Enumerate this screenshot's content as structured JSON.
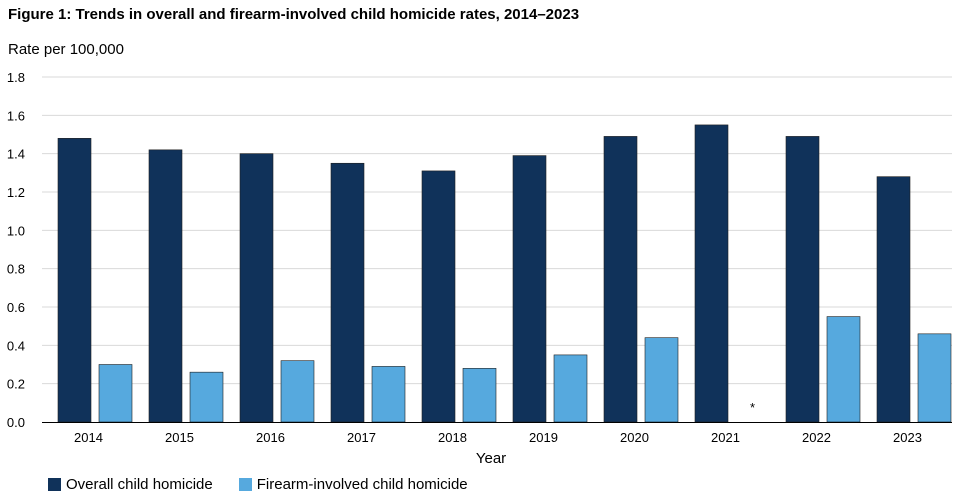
{
  "chart_data": {
    "type": "bar",
    "title": "Figure 1: Trends in overall and firearm-involved child homicide rates, 2014–2023",
    "ylabel": "Rate per 100,000",
    "xlabel": "Year",
    "categories": [
      "2014",
      "2015",
      "2016",
      "2017",
      "2018",
      "2019",
      "2020",
      "2021",
      "2022",
      "2023"
    ],
    "series": [
      {
        "name": "Overall child homicide",
        "color": "#10325a",
        "values": [
          1.48,
          1.42,
          1.4,
          1.35,
          1.31,
          1.39,
          1.49,
          1.55,
          1.49,
          1.28
        ]
      },
      {
        "name": "Firearm-involved child homicide",
        "color": "#56a9de",
        "values": [
          0.3,
          0.26,
          0.32,
          0.29,
          0.28,
          0.35,
          0.44,
          null,
          0.55,
          0.46
        ]
      }
    ],
    "missing_marker": "*",
    "ylim": [
      0,
      1.8
    ],
    "yticks": [
      "0.0",
      "0.2",
      "0.4",
      "0.6",
      "0.8",
      "1.0",
      "1.2",
      "1.4",
      "1.6",
      "1.8"
    ],
    "grid": true,
    "legend_position": "bottom-left"
  }
}
